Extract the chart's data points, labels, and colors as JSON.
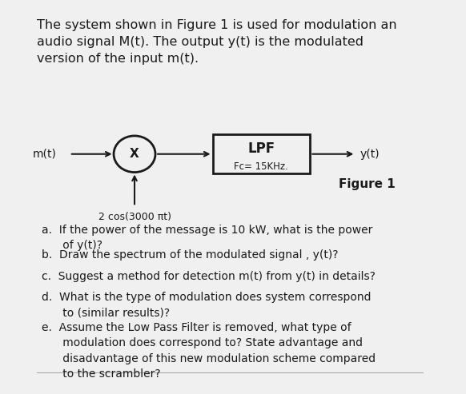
{
  "background_color": "#f0f0f0",
  "title_text": "The system shown in Figure 1 is used for modulation an\naudio signal M(t). The output y(t) is the modulated\nversion of the input m(t).",
  "title_fontsize": 11.5,
  "m_label": "m(t)",
  "x_label": "X",
  "lpf_label": "LPF",
  "fc_label": "Fc= 15KHz.",
  "y_label": "y(t)",
  "figure_label": "Figure 1",
  "carrier_label": "2 cos(3000 πt)",
  "questions": [
    "a.  If the power of the message is 10 kW, what is the power\n      of y(t)?",
    "b.  Draw the spectrum of the modulated signal , y(t)?",
    "c.  Suggest a method for detection m(t) from y(t) in details?",
    "d.  What is the type of modulation does system correspond\n      to (similar results)?",
    "e.  Assume the Low Pass Filter is removed, what type of\n      modulation does correspond to? State advantage and\n      disadvantage of this new modulation scheme compared\n      to the scrambler?"
  ],
  "text_color": "#1a1a1a",
  "box_color": "#1a1a1a",
  "arrow_color": "#1a1a1a"
}
